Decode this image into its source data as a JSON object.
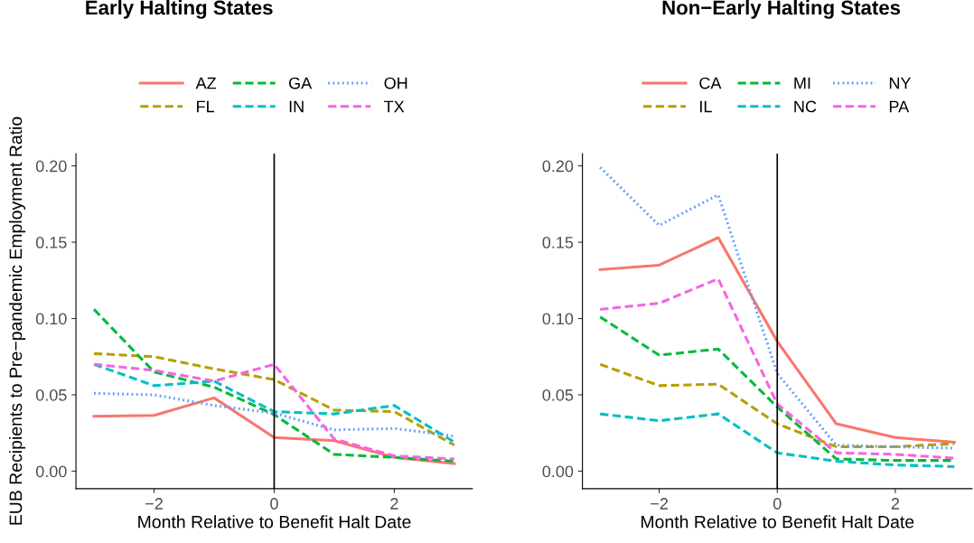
{
  "chart_data": [
    {
      "type": "line",
      "title": "Early Halting States",
      "xlabel": "Month Relative to Benefit Halt Date",
      "ylabel": "EUB Recipients to Pre−pandemic Employment Ratio",
      "x": [
        -3,
        -2,
        -1,
        0,
        1,
        2,
        3
      ],
      "series": [
        {
          "name": "AZ",
          "color": "#f8766d",
          "line_style": "solid",
          "values": [
            0.036,
            0.0365,
            0.048,
            0.022,
            0.02,
            0.009,
            0.005
          ]
        },
        {
          "name": "FL",
          "color": "#b79f00",
          "line_style": "dashed",
          "values": [
            0.077,
            0.075,
            0.067,
            0.06,
            0.04,
            0.039,
            0.017
          ]
        },
        {
          "name": "GA",
          "color": "#00ba38",
          "line_style": "dashed",
          "values": [
            0.106,
            0.065,
            0.055,
            0.037,
            0.011,
            0.009,
            0.0065
          ]
        },
        {
          "name": "IN",
          "color": "#00bfc4",
          "line_style": "dashed",
          "values": [
            0.07,
            0.056,
            0.059,
            0.039,
            0.0375,
            0.043,
            0.019
          ]
        },
        {
          "name": "OH",
          "color": "#619cff",
          "line_style": "dotted",
          "values": [
            0.051,
            0.05,
            0.043,
            0.038,
            0.027,
            0.028,
            0.023
          ]
        },
        {
          "name": "TX",
          "color": "#f564e3",
          "line_style": "dashed",
          "values": [
            0.07,
            0.066,
            0.059,
            0.07,
            0.021,
            0.01,
            0.008
          ]
        }
      ],
      "xlim": [
        -3.3,
        3.3
      ],
      "ylim": [
        -0.0115,
        0.208
      ],
      "xticks": [
        {
          "value": -2,
          "label": "−2"
        },
        0,
        2
      ],
      "yticks": [
        {
          "value": 0,
          "label": "0.00"
        },
        {
          "value": 0.05,
          "label": "0.05"
        },
        {
          "value": 0.1,
          "label": "0.10"
        },
        {
          "value": 0.15,
          "label": "0.15"
        },
        {
          "value": 0.2,
          "label": "0.20"
        }
      ],
      "ref_lines": [
        {
          "axis": "x",
          "value": 0,
          "color": "#000000"
        }
      ],
      "grid": false,
      "legend": "top",
      "marker": "none"
    },
    {
      "type": "line",
      "title": "Non−Early Halting States",
      "xlabel": "Month Relative to Benefit Halt Date",
      "x": [
        -3,
        -2,
        -1,
        0,
        1,
        2,
        3
      ],
      "series": [
        {
          "name": "CA",
          "color": "#f8766d",
          "line_style": "solid",
          "values": [
            0.132,
            0.135,
            0.153,
            0.085,
            0.031,
            0.022,
            0.019
          ]
        },
        {
          "name": "IL",
          "color": "#b79f00",
          "line_style": "dashed",
          "values": [
            0.07,
            0.056,
            0.057,
            0.031,
            0.016,
            0.016,
            0.018
          ]
        },
        {
          "name": "MI",
          "color": "#00ba38",
          "line_style": "dashed",
          "values": [
            0.101,
            0.076,
            0.08,
            0.042,
            0.008,
            0.007,
            0.007
          ]
        },
        {
          "name": "NC",
          "color": "#00bfc4",
          "line_style": "dashed",
          "values": [
            0.0375,
            0.033,
            0.0375,
            0.012,
            0.0065,
            0.004,
            0.003
          ]
        },
        {
          "name": "NY",
          "color": "#619cff",
          "line_style": "dotted",
          "values": [
            0.199,
            0.161,
            0.181,
            0.064,
            0.017,
            0.016,
            0.015
          ]
        },
        {
          "name": "PA",
          "color": "#f564e3",
          "line_style": "dashed",
          "values": [
            0.106,
            0.11,
            0.126,
            0.044,
            0.012,
            0.011,
            0.0085
          ]
        }
      ],
      "xlim": [
        -3.3,
        3.3
      ],
      "ylim": [
        -0.0115,
        0.208
      ],
      "xticks": [
        {
          "value": -2,
          "label": "−2"
        },
        0,
        2
      ],
      "yticks": [
        {
          "value": 0,
          "label": "0.00"
        },
        {
          "value": 0.05,
          "label": "0.05"
        },
        {
          "value": 0.1,
          "label": "0.10"
        },
        {
          "value": 0.15,
          "label": "0.15"
        },
        {
          "value": 0.2,
          "label": "0.20"
        }
      ],
      "ref_lines": [
        {
          "axis": "x",
          "value": 0,
          "color": "#000000"
        }
      ],
      "grid": false,
      "legend": "top",
      "marker": "none"
    }
  ]
}
